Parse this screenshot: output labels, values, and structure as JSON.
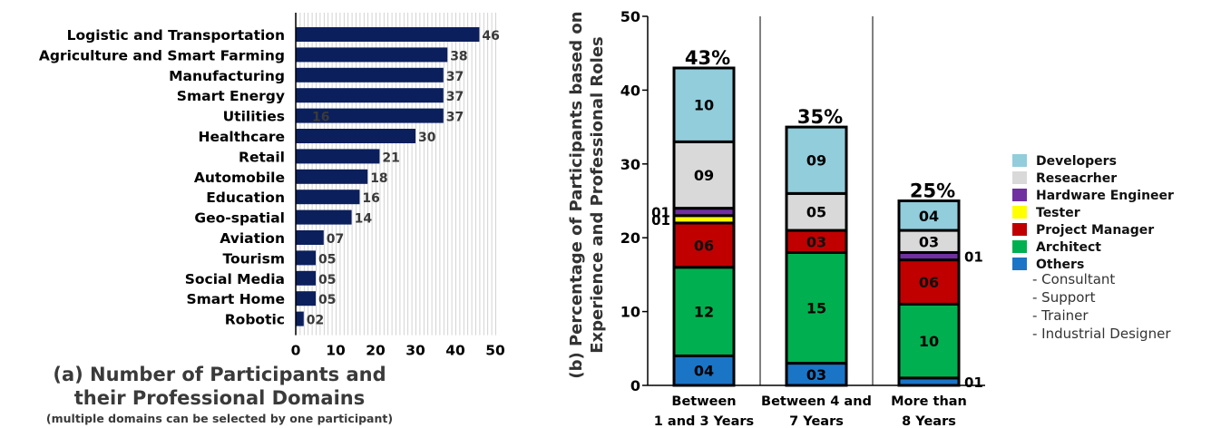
{
  "chart_data": [
    {
      "type": "bar",
      "orientation": "horizontal",
      "title_lines": [
        "(a) Number of Participants and",
        "their Professional Domains"
      ],
      "subtitle": "(multiple domains can be selected by one participant)",
      "categories": [
        "Logistic and Transportation",
        "Agriculture and Smart Farming",
        "Manufacturing",
        "Smart Energy",
        "Utilities",
        "Healthcare",
        "Retail",
        "Automobile",
        "Education",
        "Geo-spatial",
        "Aviation",
        "Tourism",
        "Social Media",
        "Smart Home",
        "Robotic"
      ],
      "values": [
        46,
        38,
        37,
        37,
        37,
        30,
        21,
        18,
        16,
        14,
        7,
        5,
        5,
        5,
        2
      ],
      "value_labels": [
        "46",
        "38",
        "37",
        "37",
        "37",
        "30",
        "21",
        "18",
        "16",
        "14",
        "07",
        "05",
        "05",
        "05",
        "02"
      ],
      "stray_label": {
        "category": "Utilities",
        "text": "16"
      },
      "xlim": [
        0,
        50
      ],
      "xticks": [
        "0",
        "10",
        "20",
        "30",
        "40",
        "50"
      ],
      "bar_color": "#0b1f5c",
      "grid": "vertical lines"
    },
    {
      "type": "stacked_bar",
      "ylabel_lines": [
        "(b) Percentage of Participants based on",
        "Experience and Professional Roles"
      ],
      "categories": [
        [
          "Between",
          "1 and 3 Years"
        ],
        [
          "Between 4 and",
          "7 Years"
        ],
        [
          "More than",
          "8 Years"
        ]
      ],
      "ylim": [
        0,
        50
      ],
      "yticks": [
        "0",
        "10",
        "20",
        "30",
        "40",
        "50"
      ],
      "totals": [
        "43%",
        "35%",
        "25%"
      ],
      "series": [
        {
          "name": "Others",
          "color": "#1a75c7",
          "values": [
            4,
            3,
            1
          ],
          "labels": [
            "04",
            "03",
            "01"
          ]
        },
        {
          "name": "Architect",
          "color": "#00b050",
          "values": [
            12,
            15,
            10
          ],
          "labels": [
            "12",
            "15",
            "10"
          ]
        },
        {
          "name": "Project Manager",
          "color": "#c00000",
          "values": [
            6,
            3,
            6
          ],
          "labels": [
            "06",
            "03",
            "06"
          ]
        },
        {
          "name": "Tester",
          "color": "#ffff00",
          "values": [
            1,
            0,
            0
          ],
          "labels": [
            "01",
            "",
            ""
          ]
        },
        {
          "name": "Hardware Engineer",
          "color": "#7030a0",
          "values": [
            1,
            0,
            1
          ],
          "labels": [
            "01",
            "",
            "01"
          ]
        },
        {
          "name": "Reseacrher",
          "color": "#d9d9d9",
          "values": [
            9,
            5,
            3
          ],
          "labels": [
            "09",
            "05",
            "03"
          ]
        },
        {
          "name": "Developers",
          "color": "#92cddc",
          "values": [
            10,
            9,
            4
          ],
          "labels": [
            "10",
            "09",
            "04"
          ]
        }
      ],
      "legend_order": [
        "Developers",
        "Reseacrher",
        "Hardware Engineer",
        "Tester",
        "Project Manager",
        "Architect",
        "Others"
      ],
      "legend_sub_items": [
        "- Consultant",
        "- Support",
        "- Trainer",
        "- Industrial Designer"
      ],
      "legend_placement": "right"
    }
  ]
}
